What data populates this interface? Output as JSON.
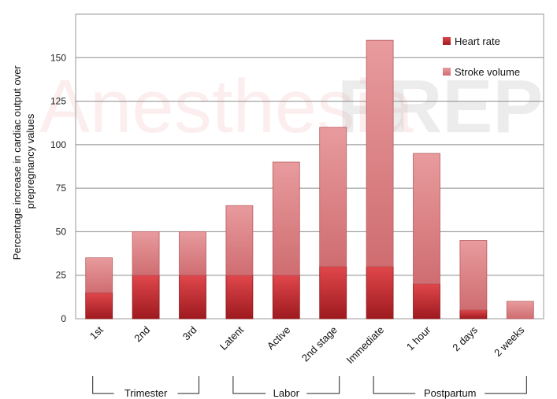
{
  "watermark": {
    "left": "Anesthesia",
    "right": "PREP"
  },
  "chart_data": {
    "type": "bar",
    "stacked": true,
    "ylabel": "Percentage increase in cardiac output  over prepregnancy  values",
    "ylabel_lines": [
      "Percentage increase in cardiac output  over",
      "prepregnancy  values"
    ],
    "ylim": [
      0,
      175
    ],
    "yticks": [
      0,
      25,
      50,
      75,
      100,
      125,
      150
    ],
    "grid": true,
    "legend_position": "top-right",
    "categories": [
      "1st",
      "2nd",
      "3rd",
      "Latent",
      "Active",
      "2nd stage",
      "Immediate",
      "1 hour",
      "2 days",
      "2 weeks"
    ],
    "series": [
      {
        "name": "Heart rate",
        "color": "#c8262b",
        "values": [
          15,
          25,
          25,
          25,
          25,
          30,
          30,
          20,
          5,
          0
        ]
      },
      {
        "name": "Stroke volume",
        "color": "#d9787c",
        "values": [
          20,
          25,
          25,
          40,
          65,
          80,
          130,
          75,
          40,
          10
        ]
      }
    ],
    "groups": [
      {
        "label": "Trimester",
        "from": 0,
        "to": 2
      },
      {
        "label": "Labor",
        "from": 3,
        "to": 5
      },
      {
        "label": "Postpartum",
        "from": 6,
        "to": 9
      }
    ]
  }
}
